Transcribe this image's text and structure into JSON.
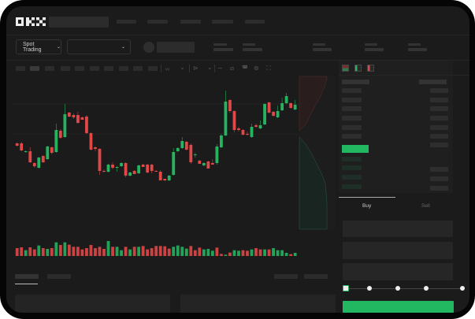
{
  "header": {
    "logo": "OKX",
    "mode_selector": "Spot Trading"
  },
  "toolbar": {
    "icons": [
      "indicator-icon",
      "chevron-down-icon",
      "candle-type-icon",
      "chevron-down-icon",
      "line-tool-icon",
      "ruler-icon",
      "camera-icon",
      "settings-icon",
      "fullscreen-icon"
    ]
  },
  "trade": {
    "buy_tab": "Buy",
    "sell_tab": "Sell",
    "slider_value": 0
  },
  "colors": {
    "up": "#26b35f",
    "down": "#e04848",
    "buy_button": "#22b862",
    "background": "#1b1b1b"
  },
  "chart_data": {
    "type": "candlestick",
    "grid": true,
    "candles": [
      {
        "o": 118,
        "h": 119,
        "l": 114,
        "c": 115
      },
      {
        "o": 118,
        "h": 120,
        "l": 108,
        "c": 109
      },
      {
        "o": 107,
        "h": 109,
        "l": 106,
        "c": 108
      },
      {
        "o": 108,
        "h": 113,
        "l": 93,
        "c": 94
      },
      {
        "o": 93,
        "h": 94,
        "l": 87,
        "c": 89
      },
      {
        "o": 87,
        "h": 101,
        "l": 86,
        "c": 100
      },
      {
        "o": 102,
        "h": 103,
        "l": 93,
        "c": 94
      },
      {
        "o": 98,
        "h": 115,
        "l": 97,
        "c": 114
      },
      {
        "o": 113,
        "h": 114,
        "l": 104,
        "c": 106
      },
      {
        "o": 107,
        "h": 143,
        "l": 106,
        "c": 135
      },
      {
        "o": 134,
        "h": 136,
        "l": 124,
        "c": 125
      },
      {
        "o": 126,
        "h": 168,
        "l": 125,
        "c": 155
      },
      {
        "o": 157,
        "h": 158,
        "l": 151,
        "c": 152
      },
      {
        "o": 154,
        "h": 156,
        "l": 149,
        "c": 151
      },
      {
        "o": 154,
        "h": 158,
        "l": 143,
        "c": 144
      },
      {
        "o": 151,
        "h": 152,
        "l": 148,
        "c": 148
      },
      {
        "o": 152,
        "h": 154,
        "l": 130,
        "c": 131
      },
      {
        "o": 131,
        "h": 132,
        "l": 109,
        "c": 110
      },
      {
        "o": 113,
        "h": 114,
        "l": 108,
        "c": 111
      },
      {
        "o": 111,
        "h": 112,
        "l": 78,
        "c": 83
      },
      {
        "o": 83,
        "h": 85,
        "l": 81,
        "c": 82
      },
      {
        "o": 82,
        "h": 92,
        "l": 81,
        "c": 91
      },
      {
        "o": 91,
        "h": 94,
        "l": 85,
        "c": 87
      },
      {
        "o": 87,
        "h": 89,
        "l": 82,
        "c": 88
      },
      {
        "o": 89,
        "h": 94,
        "l": 88,
        "c": 93
      },
      {
        "o": 93,
        "h": 94,
        "l": 75,
        "c": 77
      },
      {
        "o": 77,
        "h": 82,
        "l": 76,
        "c": 81
      },
      {
        "o": 83,
        "h": 84,
        "l": 79,
        "c": 79
      },
      {
        "o": 80,
        "h": 91,
        "l": 79,
        "c": 90
      },
      {
        "o": 91,
        "h": 92,
        "l": 88,
        "c": 88
      },
      {
        "o": 91,
        "h": 92,
        "l": 80,
        "c": 81
      },
      {
        "o": 91,
        "h": 92,
        "l": 80,
        "c": 83
      },
      {
        "o": 83,
        "h": 84,
        "l": 82,
        "c": 82
      },
      {
        "o": 82,
        "h": 84,
        "l": 71,
        "c": 71
      },
      {
        "o": 73,
        "h": 73,
        "l": 70,
        "c": 71
      },
      {
        "o": 71,
        "h": 78,
        "l": 70,
        "c": 77
      },
      {
        "o": 78,
        "h": 112,
        "l": 77,
        "c": 107
      },
      {
        "o": 108,
        "h": 113,
        "l": 107,
        "c": 112
      },
      {
        "o": 112,
        "h": 126,
        "l": 111,
        "c": 121
      },
      {
        "o": 120,
        "h": 121,
        "l": 109,
        "c": 110
      },
      {
        "o": 116,
        "h": 118,
        "l": 92,
        "c": 94
      },
      {
        "o": 103,
        "h": 106,
        "l": 100,
        "c": 104
      },
      {
        "o": 96,
        "h": 97,
        "l": 92,
        "c": 92
      },
      {
        "o": 90,
        "h": 94,
        "l": 89,
        "c": 93
      },
      {
        "o": 95,
        "h": 96,
        "l": 86,
        "c": 86
      },
      {
        "o": 93,
        "h": 98,
        "l": 91,
        "c": 91
      },
      {
        "o": 93,
        "h": 117,
        "l": 91,
        "c": 114
      },
      {
        "o": 113,
        "h": 130,
        "l": 112,
        "c": 128
      },
      {
        "o": 128,
        "h": 185,
        "l": 127,
        "c": 171
      },
      {
        "o": 173,
        "h": 174,
        "l": 157,
        "c": 159
      },
      {
        "o": 159,
        "h": 160,
        "l": 132,
        "c": 135
      },
      {
        "o": 137,
        "h": 139,
        "l": 133,
        "c": 135
      },
      {
        "o": 135,
        "h": 136,
        "l": 128,
        "c": 129
      },
      {
        "o": 130,
        "h": 133,
        "l": 128,
        "c": 129
      },
      {
        "o": 126,
        "h": 143,
        "l": 125,
        "c": 139
      },
      {
        "o": 141,
        "h": 143,
        "l": 138,
        "c": 139
      },
      {
        "o": 137,
        "h": 147,
        "l": 136,
        "c": 141
      },
      {
        "o": 142,
        "h": 169,
        "l": 141,
        "c": 168
      },
      {
        "o": 170,
        "h": 171,
        "l": 156,
        "c": 157
      },
      {
        "o": 158,
        "h": 159,
        "l": 152,
        "c": 153
      },
      {
        "o": 151,
        "h": 166,
        "l": 150,
        "c": 159
      },
      {
        "o": 160,
        "h": 176,
        "l": 159,
        "c": 169
      },
      {
        "o": 169,
        "h": 182,
        "l": 168,
        "c": 178
      },
      {
        "o": 169,
        "h": 170,
        "l": 162,
        "c": 163
      },
      {
        "o": 161,
        "h": 173,
        "l": 160,
        "c": 167
      }
    ],
    "volume": [
      {
        "v": 30,
        "up": false
      },
      {
        "v": 33,
        "up": false
      },
      {
        "v": 22,
        "up": true
      },
      {
        "v": 33,
        "up": false
      },
      {
        "v": 25,
        "up": false
      },
      {
        "v": 40,
        "up": true
      },
      {
        "v": 30,
        "up": false
      },
      {
        "v": 27,
        "up": true
      },
      {
        "v": 30,
        "up": false
      },
      {
        "v": 52,
        "up": true
      },
      {
        "v": 42,
        "up": false
      },
      {
        "v": 52,
        "up": true
      },
      {
        "v": 43,
        "up": false
      },
      {
        "v": 35,
        "up": false
      },
      {
        "v": 35,
        "up": false
      },
      {
        "v": 25,
        "up": false
      },
      {
        "v": 30,
        "up": false
      },
      {
        "v": 42,
        "up": false
      },
      {
        "v": 30,
        "up": false
      },
      {
        "v": 35,
        "up": false
      },
      {
        "v": 27,
        "up": false
      },
      {
        "v": 57,
        "up": true
      },
      {
        "v": 35,
        "up": false
      },
      {
        "v": 35,
        "up": true
      },
      {
        "v": 22,
        "up": true
      },
      {
        "v": 35,
        "up": false
      },
      {
        "v": 25,
        "up": true
      },
      {
        "v": 35,
        "up": false
      },
      {
        "v": 35,
        "up": true
      },
      {
        "v": 38,
        "up": false
      },
      {
        "v": 25,
        "up": false
      },
      {
        "v": 30,
        "up": false
      },
      {
        "v": 38,
        "up": false
      },
      {
        "v": 38,
        "up": false
      },
      {
        "v": 37,
        "up": false
      },
      {
        "v": 28,
        "up": false
      },
      {
        "v": 35,
        "up": true
      },
      {
        "v": 40,
        "up": true
      },
      {
        "v": 35,
        "up": true
      },
      {
        "v": 28,
        "up": true
      },
      {
        "v": 38,
        "up": false
      },
      {
        "v": 22,
        "up": false
      },
      {
        "v": 32,
        "up": false
      },
      {
        "v": 25,
        "up": true
      },
      {
        "v": 27,
        "up": true
      },
      {
        "v": 20,
        "up": true
      },
      {
        "v": 32,
        "up": false
      },
      {
        "v": 8,
        "up": false
      },
      {
        "v": 5,
        "up": true
      },
      {
        "v": 13,
        "up": false
      },
      {
        "v": 22,
        "up": true
      },
      {
        "v": 20,
        "up": true
      },
      {
        "v": 22,
        "up": false
      },
      {
        "v": 20,
        "up": false
      },
      {
        "v": 25,
        "up": true
      },
      {
        "v": 30,
        "up": false
      },
      {
        "v": 25,
        "up": false
      },
      {
        "v": 25,
        "up": true
      },
      {
        "v": 25,
        "up": false
      },
      {
        "v": 30,
        "up": true
      },
      {
        "v": 22,
        "up": true
      },
      {
        "v": 22,
        "up": true
      },
      {
        "v": 12,
        "up": true
      },
      {
        "v": 7,
        "up": false
      },
      {
        "v": 12,
        "up": true
      }
    ]
  }
}
